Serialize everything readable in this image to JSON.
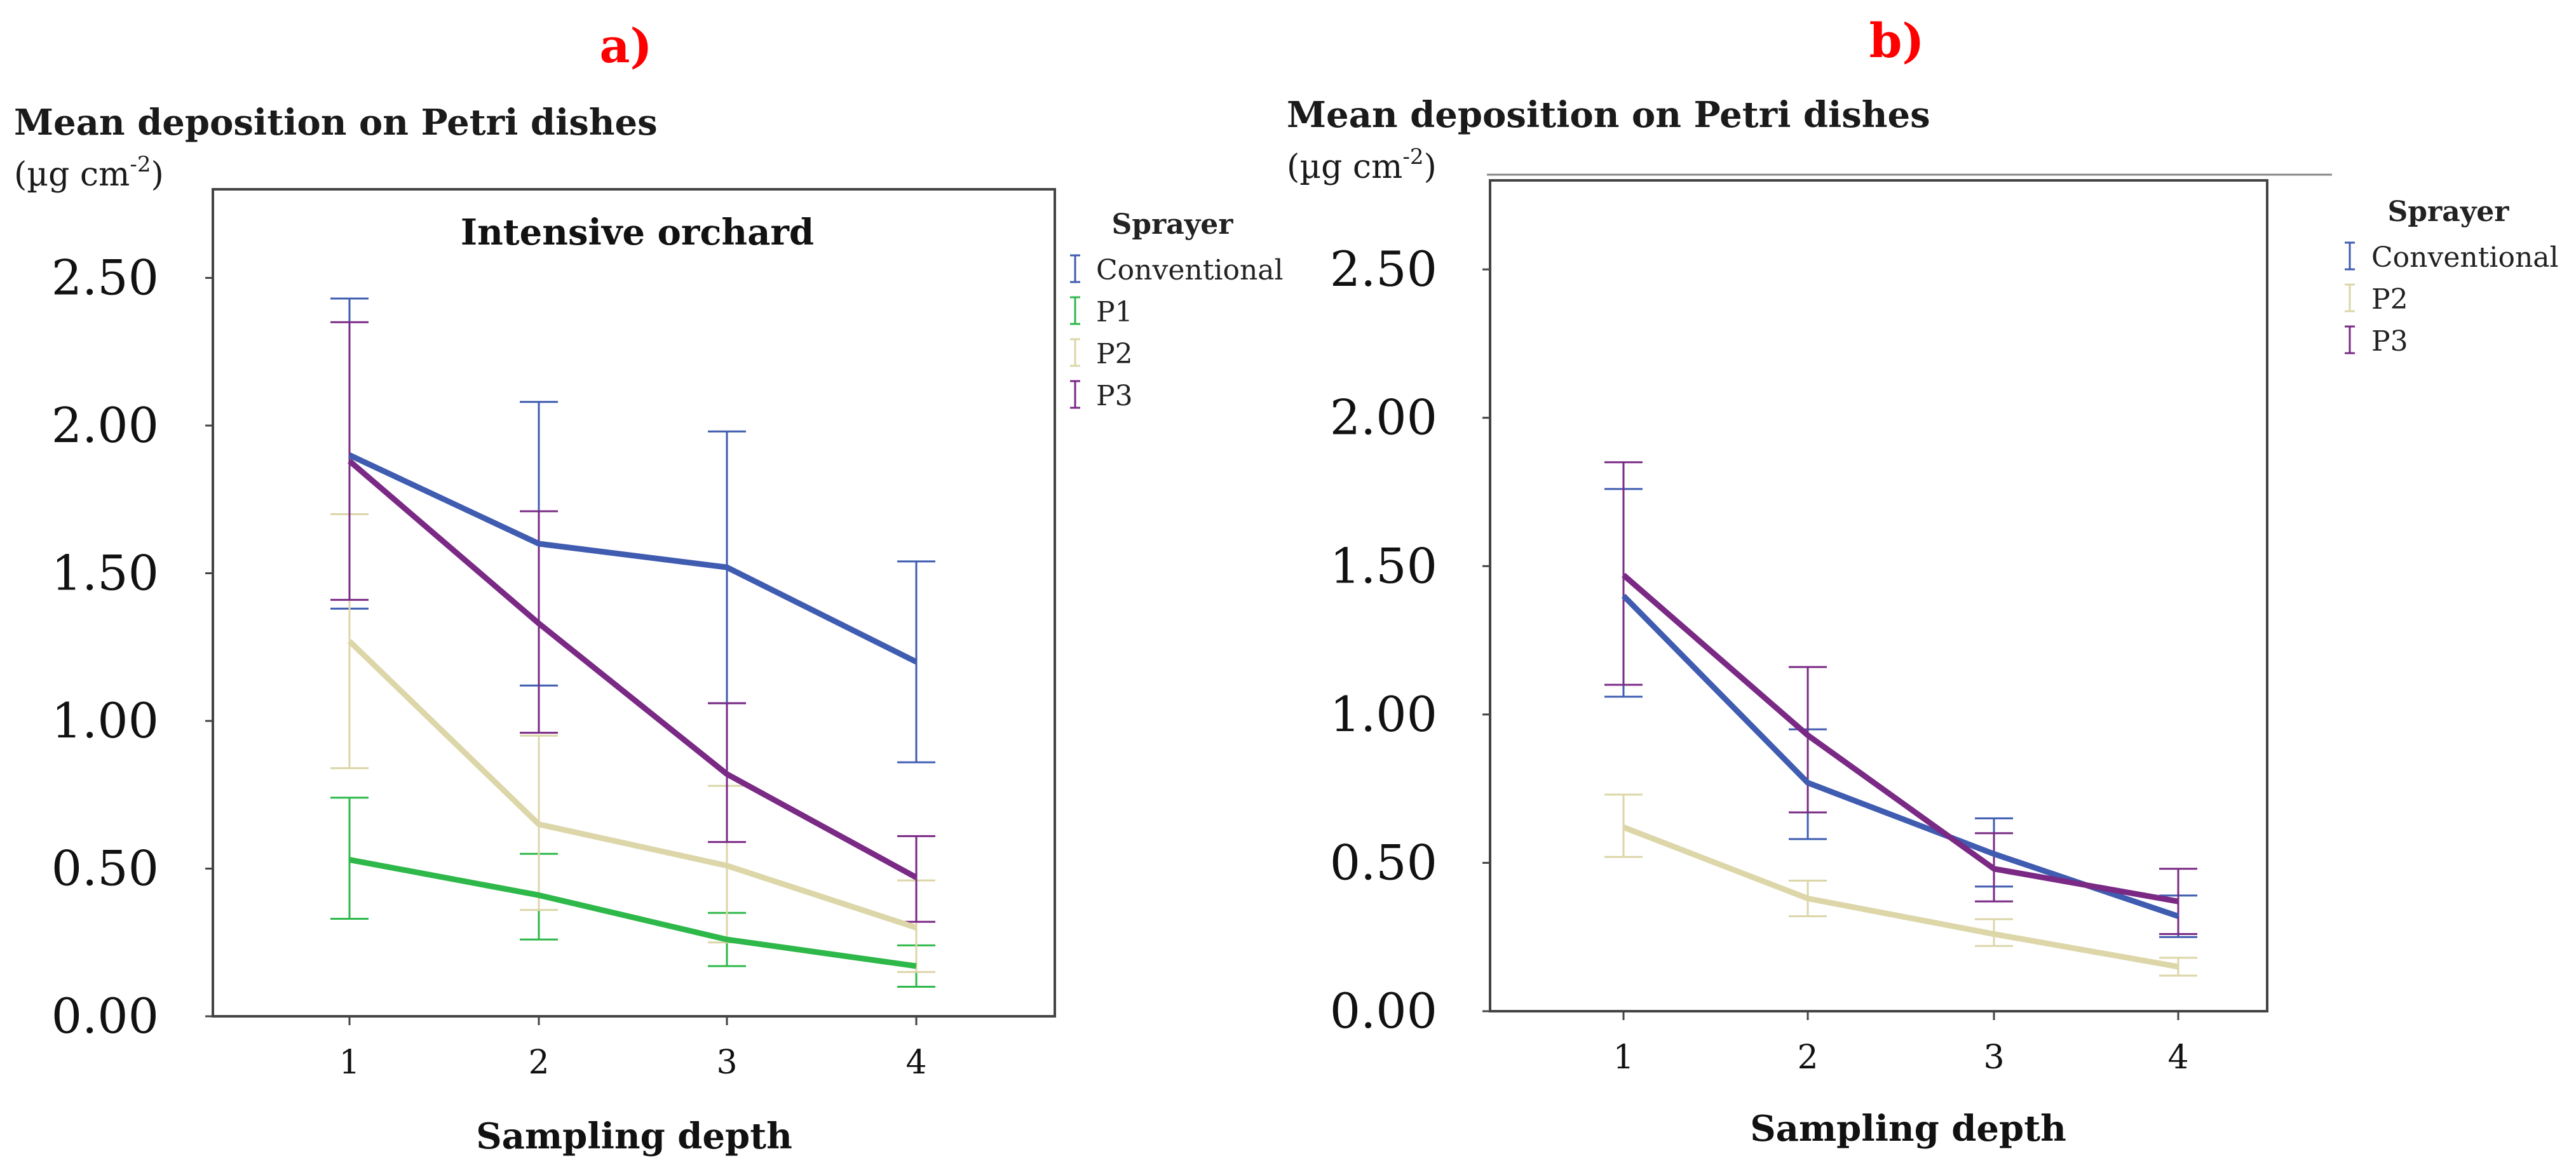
{
  "chart_data": [
    {
      "type": "line",
      "panel_label": "a)",
      "title": "Intensive orchard",
      "ylabel": "Mean deposition on Petri dishes",
      "yunit": "(µg cm-2)",
      "yunit_base": "(µg cm",
      "yunit_exp": "-2",
      "yunit_close": ")",
      "xlabel": "Sampling depth",
      "x": [
        1,
        2,
        3,
        4
      ],
      "x_tick_labels": [
        "1",
        "2",
        "3",
        "4"
      ],
      "ylim": [
        0,
        2.8
      ],
      "y_ticks": [
        0,
        0.5,
        1.0,
        1.5,
        2.0,
        2.5
      ],
      "y_tick_labels": [
        "0.00",
        "0.50",
        "1.00",
        "1.50",
        "2.00",
        "2.50"
      ],
      "legend_title": "Sprayer",
      "legend_position": "right",
      "series": [
        {
          "name": "Conventional",
          "color": "#3f5cb0",
          "values": [
            1.9,
            1.6,
            1.52,
            1.2
          ],
          "lower": [
            1.38,
            1.12,
            1.06,
            0.86
          ],
          "upper": [
            2.43,
            2.08,
            1.98,
            1.54
          ]
        },
        {
          "name": "P1",
          "color": "#2eb84a",
          "values": [
            0.53,
            0.41,
            0.26,
            0.17
          ],
          "lower": [
            0.33,
            0.26,
            0.17,
            0.1
          ],
          "upper": [
            0.74,
            0.55,
            0.35,
            0.24
          ]
        },
        {
          "name": "P2",
          "color": "#dcd6a8",
          "values": [
            1.27,
            0.65,
            0.51,
            0.3
          ],
          "lower": [
            0.84,
            0.36,
            0.25,
            0.15
          ],
          "upper": [
            1.7,
            0.95,
            0.78,
            0.46
          ]
        },
        {
          "name": "P3",
          "color": "#7a2a85",
          "values": [
            1.88,
            1.33,
            0.82,
            0.47
          ],
          "lower": [
            1.41,
            0.96,
            0.59,
            0.32
          ],
          "upper": [
            2.35,
            1.71,
            1.06,
            0.61
          ]
        }
      ]
    },
    {
      "type": "line",
      "panel_label": "b)",
      "title": "",
      "ylabel": "Mean deposition on Petri dishes",
      "yunit": "(µg cm-2)",
      "yunit_base": "(µg cm",
      "yunit_exp": "-2",
      "yunit_close": ")",
      "xlabel": "Sampling depth",
      "x": [
        1,
        2,
        3,
        4
      ],
      "x_tick_labels": [
        "1",
        "2",
        "3",
        "4"
      ],
      "ylim": [
        0,
        2.8
      ],
      "y_ticks": [
        0,
        0.5,
        1.0,
        1.5,
        2.0,
        2.5
      ],
      "y_tick_labels": [
        "0.00",
        "0.50",
        "1.00",
        "1.50",
        "2.00",
        "2.50"
      ],
      "legend_title": "Sprayer",
      "legend_position": "right",
      "series": [
        {
          "name": "Conventional",
          "color": "#3f5cb0",
          "values": [
            1.4,
            0.77,
            0.53,
            0.32
          ],
          "lower": [
            1.06,
            0.58,
            0.42,
            0.25
          ],
          "upper": [
            1.76,
            0.95,
            0.65,
            0.39
          ]
        },
        {
          "name": "P2",
          "color": "#dcd6a8",
          "values": [
            0.62,
            0.38,
            0.26,
            0.15
          ],
          "lower": [
            0.52,
            0.32,
            0.22,
            0.12
          ],
          "upper": [
            0.73,
            0.44,
            0.31,
            0.18
          ]
        },
        {
          "name": "P3",
          "color": "#7a2a85",
          "values": [
            1.47,
            0.93,
            0.48,
            0.37
          ],
          "lower": [
            1.1,
            0.67,
            0.37,
            0.26
          ],
          "upper": [
            1.85,
            1.16,
            0.6,
            0.48
          ]
        }
      ]
    }
  ]
}
